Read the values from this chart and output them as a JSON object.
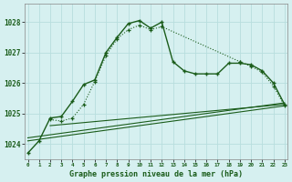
{
  "title": "Graphe pression niveau de la mer (hPa)",
  "background_color": "#d6f0f0",
  "grid_color": "#b8dede",
  "line_color": "#1a5c1a",
  "line_color2": "#2d7a2d",
  "x_values": [
    0,
    1,
    2,
    3,
    4,
    5,
    6,
    7,
    8,
    9,
    10,
    11,
    12,
    13,
    14,
    15,
    16,
    17,
    18,
    19,
    20,
    21,
    22,
    23
  ],
  "series1": [
    1023.7,
    1024.1,
    1024.85,
    1024.9,
    1025.4,
    1025.95,
    1026.1,
    1027.0,
    1027.5,
    1027.95,
    1028.05,
    1027.8,
    1028.0,
    1026.7,
    1026.4,
    1026.3,
    1026.3,
    1026.3,
    1026.65,
    1026.65,
    1026.6,
    1026.4,
    1026.0,
    1025.3
  ],
  "series2_x": [
    2,
    3,
    4,
    5,
    6,
    7,
    8,
    9,
    10,
    11,
    12,
    19,
    20,
    21,
    22,
    23
  ],
  "series2_y": [
    1024.8,
    1024.75,
    1024.85,
    1025.3,
    1026.05,
    1026.9,
    1027.45,
    1027.75,
    1027.9,
    1027.75,
    1027.85,
    1026.7,
    1026.55,
    1026.35,
    1025.9,
    1025.25
  ],
  "trend_lines": [
    {
      "x": [
        0,
        23
      ],
      "y": [
        1024.1,
        1025.25
      ]
    },
    {
      "x": [
        0,
        23
      ],
      "y": [
        1024.2,
        1025.35
      ]
    },
    {
      "x": [
        2,
        23
      ],
      "y": [
        1024.6,
        1025.3
      ]
    }
  ],
  "ylim": [
    1023.5,
    1028.6
  ],
  "yticks": [
    1024,
    1025,
    1026,
    1027,
    1028
  ],
  "xlim": [
    -0.3,
    23.3
  ],
  "xticks": [
    0,
    1,
    2,
    3,
    4,
    5,
    6,
    7,
    8,
    9,
    10,
    11,
    12,
    13,
    14,
    15,
    16,
    17,
    18,
    19,
    20,
    21,
    22,
    23
  ]
}
